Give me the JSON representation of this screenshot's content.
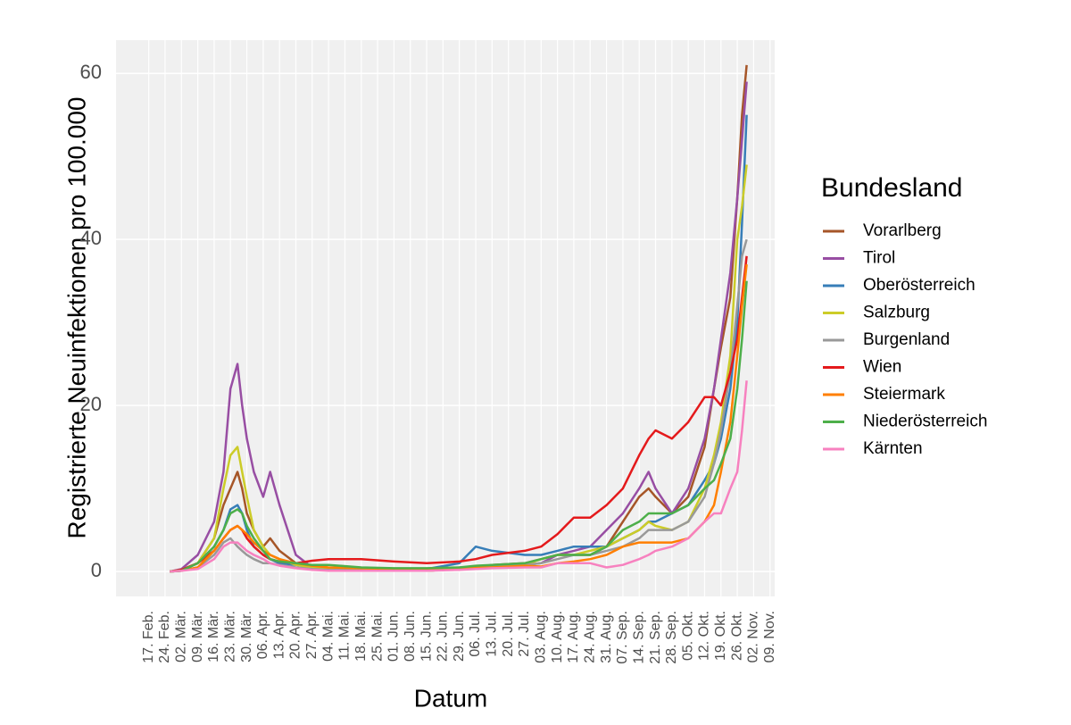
{
  "chart_data": {
    "type": "line",
    "x_label": "Datum",
    "y_label": "Registrierte Neuinfektionen pro 100.000",
    "legend_title": "Bundesland",
    "legend_position": "right",
    "grid": true,
    "xlim": [
      34,
      316
    ],
    "ylim": [
      -3,
      64
    ],
    "yticks": [
      0,
      20,
      40,
      60
    ],
    "xticks": [
      {
        "value": 48,
        "label": "17. Feb."
      },
      {
        "value": 55,
        "label": "24. Feb."
      },
      {
        "value": 62,
        "label": "02. Mär."
      },
      {
        "value": 69,
        "label": "09. Mär."
      },
      {
        "value": 76,
        "label": "16. Mär."
      },
      {
        "value": 83,
        "label": "23. Mär."
      },
      {
        "value": 90,
        "label": "30. Mär."
      },
      {
        "value": 97,
        "label": "06. Apr."
      },
      {
        "value": 104,
        "label": "13. Apr."
      },
      {
        "value": 111,
        "label": "20. Apr."
      },
      {
        "value": 118,
        "label": "27. Apr."
      },
      {
        "value": 125,
        "label": "04. Mai."
      },
      {
        "value": 132,
        "label": "11. Mai."
      },
      {
        "value": 139,
        "label": "18. Mai."
      },
      {
        "value": 146,
        "label": "25. Mai."
      },
      {
        "value": 153,
        "label": "01. Jun."
      },
      {
        "value": 160,
        "label": "08. Jun."
      },
      {
        "value": 167,
        "label": "15. Jun."
      },
      {
        "value": 174,
        "label": "22. Jun."
      },
      {
        "value": 181,
        "label": "29. Jun."
      },
      {
        "value": 188,
        "label": "06. Jul."
      },
      {
        "value": 195,
        "label": "13. Jul."
      },
      {
        "value": 202,
        "label": "20. Jul."
      },
      {
        "value": 209,
        "label": "27. Jul."
      },
      {
        "value": 216,
        "label": "03. Aug."
      },
      {
        "value": 223,
        "label": "10. Aug."
      },
      {
        "value": 230,
        "label": "17. Aug."
      },
      {
        "value": 237,
        "label": "24. Aug."
      },
      {
        "value": 244,
        "label": "31. Aug."
      },
      {
        "value": 251,
        "label": "07. Sep."
      },
      {
        "value": 258,
        "label": "14. Sep."
      },
      {
        "value": 265,
        "label": "21. Sep."
      },
      {
        "value": 272,
        "label": "28. Sep."
      },
      {
        "value": 279,
        "label": "05. Okt."
      },
      {
        "value": 286,
        "label": "12. Okt."
      },
      {
        "value": 293,
        "label": "19. Okt."
      },
      {
        "value": 300,
        "label": "26. Okt."
      },
      {
        "value": 307,
        "label": "02. Nov."
      },
      {
        "value": 314,
        "label": "09. Nov."
      }
    ],
    "x": [
      57,
      62,
      69,
      76,
      80,
      83,
      86,
      88,
      90,
      93,
      97,
      100,
      104,
      111,
      118,
      125,
      139,
      153,
      167,
      181,
      188,
      195,
      209,
      216,
      223,
      230,
      237,
      244,
      251,
      258,
      262,
      265,
      272,
      279,
      286,
      290,
      293,
      297,
      300,
      302,
      304
    ],
    "series": [
      {
        "name": "Vorarlberg",
        "color": "#a65628",
        "values": [
          0,
          0.2,
          1,
          4,
          8,
          10,
          12,
          10,
          7,
          5,
          3,
          4,
          2.5,
          1,
          0.5,
          0.3,
          0.2,
          0.1,
          0.1,
          0.3,
          0.5,
          0.8,
          1,
          1.5,
          2,
          2,
          2,
          3,
          6,
          9,
          10,
          9,
          7,
          9,
          15,
          22,
          27,
          33,
          45,
          55,
          61
        ]
      },
      {
        "name": "Tirol",
        "color": "#984ea3",
        "values": [
          0,
          0.3,
          2,
          6,
          12,
          22,
          25,
          20,
          16,
          12,
          9,
          12,
          8,
          2,
          0.5,
          0.3,
          0.2,
          0.1,
          0.1,
          0.3,
          0.5,
          0.5,
          0.8,
          1,
          2,
          2.5,
          3,
          5,
          7,
          10,
          12,
          10,
          7,
          10,
          16,
          22,
          28,
          36,
          45,
          52,
          59
        ]
      },
      {
        "name": "Oberösterreich",
        "color": "#377eb8",
        "values": [
          0,
          0.1,
          1,
          3,
          5,
          7.5,
          8,
          7,
          5,
          3,
          2,
          1.5,
          1,
          0.8,
          0.5,
          0.4,
          0.3,
          0.3,
          0.3,
          1,
          3,
          2.5,
          2,
          2,
          2.5,
          3,
          3,
          3,
          4,
          5,
          6,
          6,
          7,
          8,
          11,
          13,
          16,
          22,
          30,
          42,
          55
        ]
      },
      {
        "name": "Salzburg",
        "color": "#cccc28",
        "values": [
          0,
          0.2,
          1,
          4,
          10,
          14,
          15,
          12,
          9,
          5,
          3,
          2,
          1.5,
          0.8,
          0.5,
          0.3,
          0.2,
          0.1,
          0.1,
          0.3,
          0.5,
          0.6,
          0.8,
          1.5,
          2,
          2,
          2.5,
          3,
          4,
          5,
          6,
          5.5,
          5,
          6,
          10,
          14,
          18,
          26,
          40,
          44,
          49
        ]
      },
      {
        "name": "Burgenland",
        "color": "#999999",
        "values": [
          0,
          0.1,
          0.5,
          2,
          3.5,
          4,
          3,
          2.5,
          2,
          1.5,
          1,
          1,
          0.8,
          0.5,
          0.3,
          0.2,
          0.2,
          0.2,
          0.3,
          0.5,
          0.5,
          0.6,
          0.8,
          1,
          1.5,
          2,
          2,
          2.5,
          3,
          4,
          5,
          5,
          5,
          6,
          9,
          13,
          17,
          24,
          32,
          38,
          40
        ]
      },
      {
        "name": "Wien",
        "color": "#e41a1c",
        "values": [
          0,
          0.2,
          1,
          2.5,
          4,
          5,
          5.5,
          5,
          4,
          3,
          2,
          1.5,
          1.2,
          1,
          1.3,
          1.5,
          1.5,
          1.2,
          1,
          1.2,
          1.5,
          2,
          2.5,
          3,
          4.5,
          6.5,
          6.5,
          8,
          10,
          14,
          16,
          17,
          16,
          18,
          21,
          21,
          20,
          24,
          28,
          33,
          38
        ]
      },
      {
        "name": "Steiermark",
        "color": "#ff7f00",
        "values": [
          0,
          0.1,
          0.5,
          2.5,
          4,
          5,
          5.5,
          5,
          4.5,
          3.5,
          2.5,
          2,
          1.5,
          1,
          0.7,
          0.5,
          0.4,
          0.3,
          0.3,
          0.4,
          0.5,
          0.5,
          0.7,
          0.6,
          1,
          1.2,
          1.5,
          2,
          3,
          3.5,
          3.5,
          3.5,
          3.5,
          4,
          6,
          8,
          12,
          18,
          26,
          32,
          37
        ]
      },
      {
        "name": "Niederösterreich",
        "color": "#4daf4a",
        "values": [
          0,
          0.1,
          1,
          3,
          5,
          7,
          7.5,
          7,
          5.5,
          4,
          2.5,
          1.5,
          1.2,
          1,
          0.8,
          0.8,
          0.5,
          0.4,
          0.4,
          0.5,
          0.7,
          0.8,
          1,
          1.5,
          2,
          2,
          2,
          3,
          5,
          6,
          7,
          7,
          7,
          8,
          10,
          11,
          13,
          16,
          22,
          28,
          35
        ]
      },
      {
        "name": "Kärnten",
        "color": "#f781bf",
        "values": [
          0,
          0.1,
          0.3,
          1.5,
          3,
          3.5,
          3.5,
          3,
          2.5,
          2,
          1.5,
          1,
          0.7,
          0.4,
          0.2,
          0.1,
          0.1,
          0.1,
          0.1,
          0.2,
          0.3,
          0.4,
          0.5,
          0.5,
          1,
          1,
          1,
          0.5,
          0.8,
          1.5,
          2,
          2.5,
          3,
          4,
          6,
          7,
          7,
          10,
          12,
          17,
          23
        ]
      }
    ]
  }
}
